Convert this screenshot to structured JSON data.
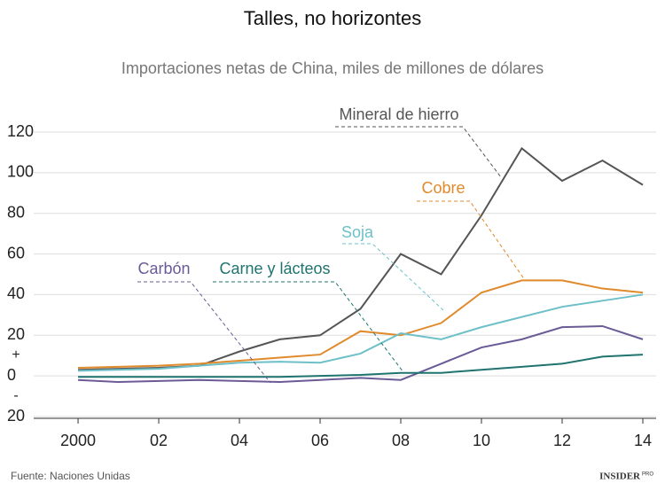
{
  "chart_data": {
    "type": "line",
    "title": "Talles, no horizontes",
    "subtitle": "Importaciones netas de China, miles de millones de dólares",
    "source": "Fuente: Naciones Unidas",
    "brand": "INSIDER",
    "brand_suffix": "PRO",
    "y_sign_labels": {
      "plus": "+",
      "minus": "-"
    },
    "x": [
      2000,
      2001,
      2002,
      2003,
      2004,
      2005,
      2006,
      2007,
      2008,
      2009,
      2010,
      2011,
      2012,
      2013,
      2014
    ],
    "series": [
      {
        "name": "Mineral de hierro",
        "color": "#555555",
        "values": [
          3,
          3.5,
          4,
          5,
          12,
          18,
          20,
          33,
          60,
          50,
          79,
          112,
          96,
          106,
          94
        ]
      },
      {
        "name": "Cobre",
        "color": "#e08a2c",
        "values": [
          4,
          4.5,
          5,
          6,
          7.5,
          9,
          10.5,
          22,
          20,
          26,
          41,
          47,
          47,
          43,
          41
        ]
      },
      {
        "name": "Soja",
        "color": "#6dc0c8",
        "values": [
          2.5,
          3,
          3.5,
          5,
          6.5,
          7,
          6.5,
          11,
          21,
          18,
          24,
          29,
          34,
          37,
          40
        ]
      },
      {
        "name": "Carbón",
        "color": "#6a5a96",
        "values": [
          -2,
          -3,
          -2.5,
          -2,
          -2.5,
          -3,
          -2,
          -1,
          -2,
          6,
          14,
          18,
          24,
          24.5,
          18
        ]
      },
      {
        "name": "Carne y lácteos",
        "color": "#1f7470",
        "values": [
          -0.5,
          -0.5,
          -0.5,
          -0.5,
          -0.5,
          -0.5,
          0,
          0.5,
          1.5,
          1.5,
          3,
          4.5,
          6,
          9.5,
          10.5
        ]
      }
    ],
    "xlim": [
      1998.9,
      2014.33
    ],
    "xticks": [
      2000,
      {
        "value": 2002,
        "label": "02"
      },
      {
        "value": 2004,
        "label": "04"
      },
      {
        "value": 2006,
        "label": "06"
      },
      {
        "value": 2008,
        "label": "08"
      },
      {
        "value": 2010,
        "label": "10"
      },
      {
        "value": 2012,
        "label": "12"
      },
      {
        "value": 2014,
        "label": "14"
      }
    ],
    "ylim": [
      -20,
      120
    ],
    "yticks": [
      {
        "value": -20,
        "label": "20"
      },
      0,
      20,
      40,
      60,
      80,
      100,
      120
    ],
    "grid": true
  }
}
